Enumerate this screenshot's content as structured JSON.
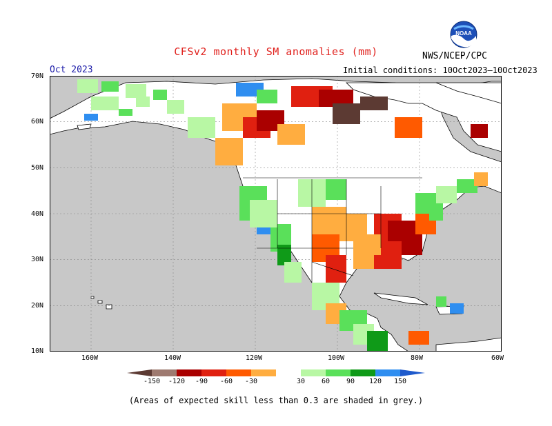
{
  "header": {
    "title": "CFSv2 monthly SM anomalies (mm)",
    "org": "NWS/NCEP/CPC",
    "month": "Oct 2023",
    "init": "Initial conditions: 10Oct2023–10Oct2023",
    "logo_text": "NOAA"
  },
  "axes": {
    "lat_labels": [
      "70N",
      "60N",
      "50N",
      "40N",
      "30N",
      "20N",
      "10N"
    ],
    "lon_labels": [
      "160W",
      "140W",
      "120W",
      "100W",
      "80W",
      "60W"
    ]
  },
  "colorbar": {
    "ticks": [
      "-150",
      "-120",
      "-90",
      "-60",
      "-30",
      "30",
      "60",
      "90",
      "120",
      "150"
    ],
    "colors": [
      "#5c3a33",
      "#9e7a70",
      "#aa0000",
      "#e02010",
      "#ff5a00",
      "#ffad40",
      "#ffffff",
      "#b8f7a4",
      "#5ae05a",
      "#0f9a18",
      "#2f8ef0",
      "#1e5acc"
    ]
  },
  "map": {
    "ocean_color": "#c8c8c8",
    "skill_note": "(Areas of expected skill less than 0.3 are shaded in grey.)"
  }
}
